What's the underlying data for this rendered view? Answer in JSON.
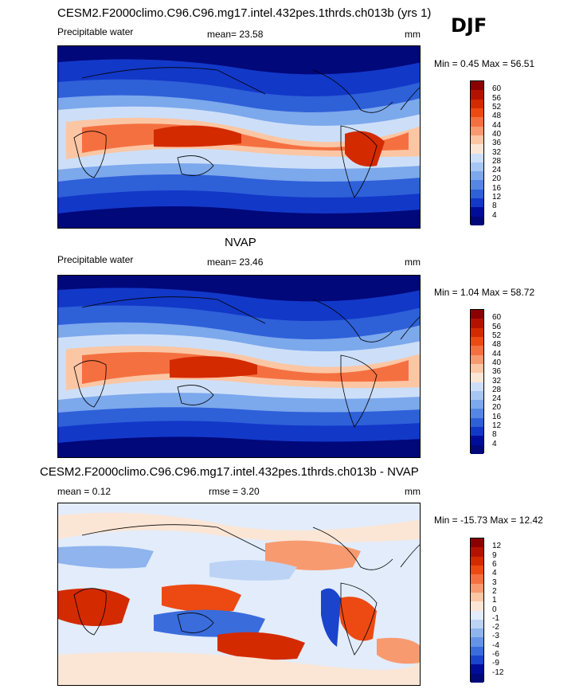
{
  "season": "DJF",
  "chart_data": [
    {
      "type": "heatmap",
      "title": "CESM2.F2000climo.C96.C96.mg17.intel.432pes.1thrds.ch013b (yrs 1)",
      "variable": "Precipitable water",
      "stat_label": "mean=",
      "stat_value": "23.58",
      "units": "mm",
      "min_label": "Min =",
      "min_value": "0.45",
      "max_label": "Max =",
      "max_value": "56.51",
      "levels": [
        "60",
        "56",
        "52",
        "48",
        "44",
        "40",
        "36",
        "32",
        "28",
        "24",
        "20",
        "16",
        "12",
        "8",
        "4"
      ],
      "colors": [
        "#8b0000",
        "#b41200",
        "#d42a00",
        "#ec4a12",
        "#f57040",
        "#f89a70",
        "#fbc6a4",
        "#fbe6d6",
        "#cddff8",
        "#a6c6f3",
        "#7ca8ec",
        "#5686e3",
        "#2e60d8",
        "#1238c8",
        "#000d99",
        "#00087a"
      ]
    },
    {
      "type": "heatmap",
      "title": "NVAP",
      "variable": "Precipitable water",
      "stat_label": "mean=",
      "stat_value": "23.46",
      "units": "mm",
      "min_label": "Min =",
      "min_value": "1.04",
      "max_label": "Max =",
      "max_value": "58.72",
      "levels": [
        "60",
        "56",
        "52",
        "48",
        "44",
        "40",
        "36",
        "32",
        "28",
        "24",
        "20",
        "16",
        "12",
        "8",
        "4"
      ],
      "colors": [
        "#8b0000",
        "#b41200",
        "#d42a00",
        "#ec4a12",
        "#f57040",
        "#f89a70",
        "#fbc6a4",
        "#fbe6d6",
        "#cddff8",
        "#a6c6f3",
        "#7ca8ec",
        "#5686e3",
        "#2e60d8",
        "#1238c8",
        "#000d99",
        "#00087a"
      ]
    },
    {
      "type": "heatmap",
      "title": "CESM2.F2000climo.C96.C96.mg17.intel.432pes.1thrds.ch013b - NVAP",
      "variable": "",
      "stat_label": "mean =",
      "stat_value": "0.12",
      "stat2_label": "rmse =",
      "stat2_value": "3.20",
      "units": "mm",
      "min_label": "Min =",
      "min_value": "-15.73",
      "max_label": "Max =",
      "max_value": "12.42",
      "levels": [
        "12",
        "9",
        "6",
        "4",
        "3",
        "2",
        "1",
        "0",
        "-1",
        "-2",
        "-3",
        "-4",
        "-6",
        "-9",
        "-12"
      ],
      "colors": [
        "#8b0000",
        "#b41200",
        "#d42a00",
        "#ec4a12",
        "#f57040",
        "#f89a70",
        "#fbc6a4",
        "#fbe6d6",
        "#e2ecfb",
        "#bcd3f5",
        "#8fb4ee",
        "#6593e6",
        "#3a6cdb",
        "#1a44cc",
        "#000d99",
        "#00087a"
      ]
    }
  ]
}
